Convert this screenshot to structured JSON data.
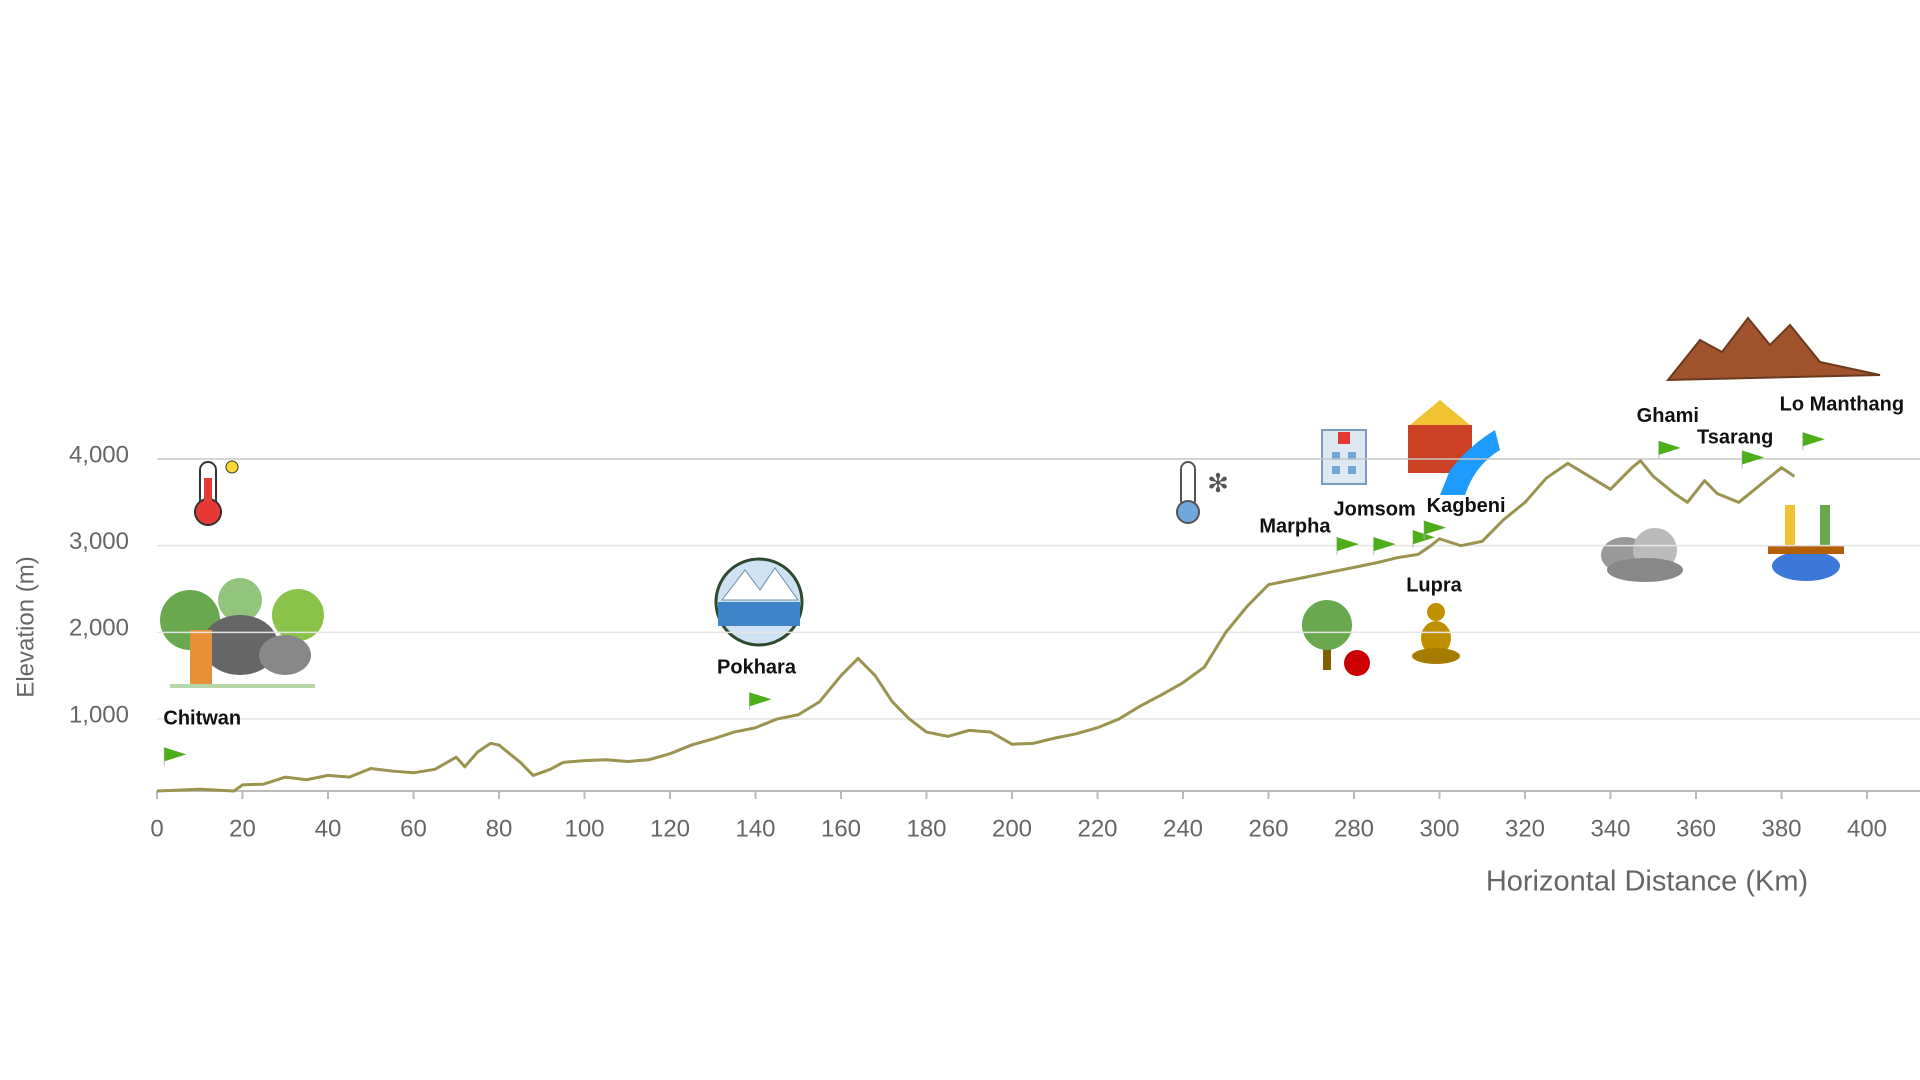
{
  "chart_data": {
    "type": "line",
    "x_label": "Horizontal Distance (Km)",
    "y_label": "Elevation (m)",
    "color": "#9a9450",
    "x": [
      0,
      10,
      18,
      20,
      25,
      30,
      35,
      40,
      45,
      50,
      55,
      60,
      65,
      70,
      72,
      75,
      78,
      80,
      85,
      88,
      92,
      95,
      100,
      105,
      110,
      115,
      120,
      125,
      130,
      135,
      140,
      145,
      150,
      155,
      160,
      164,
      168,
      172,
      176,
      180,
      185,
      190,
      195,
      200,
      205,
      210,
      215,
      220,
      225,
      230,
      235,
      240,
      245,
      250,
      255,
      260,
      265,
      270,
      275,
      280,
      285,
      290,
      295,
      298,
      300,
      305,
      310,
      315,
      320,
      325,
      330,
      335,
      340,
      345,
      347,
      350,
      355,
      358,
      362,
      365,
      370,
      375,
      380,
      383
    ],
    "values": [
      170,
      190,
      170,
      240,
      250,
      330,
      300,
      350,
      330,
      430,
      400,
      380,
      420,
      560,
      450,
      620,
      720,
      700,
      500,
      350,
      420,
      500,
      520,
      530,
      510,
      530,
      600,
      700,
      770,
      850,
      900,
      1000,
      1050,
      1200,
      1500,
      1700,
      1500,
      1200,
      1000,
      850,
      800,
      870,
      850,
      710,
      720,
      780,
      830,
      900,
      1000,
      1150,
      1280,
      1420,
      1600,
      2000,
      2300,
      2550,
      2600,
      2650,
      2700,
      2750,
      2800,
      2860,
      2900,
      3000,
      3080,
      3000,
      3050,
      3300,
      3500,
      3780,
      3950,
      3800,
      3650,
      3900,
      3980,
      3800,
      3600,
      3500,
      3750,
      3600,
      3500,
      3700,
      3900,
      3800
    ],
    "xlim": [
      0,
      412
    ],
    "ylim": [
      170,
      4000
    ],
    "xticks": [
      0,
      20,
      40,
      60,
      80,
      100,
      120,
      140,
      160,
      180,
      200,
      220,
      240,
      260,
      280,
      300,
      320,
      340,
      360,
      380,
      400
    ],
    "yticks": [
      {
        "value": 1000,
        "label": "1,000"
      },
      {
        "value": 2000,
        "label": "2,000"
      },
      {
        "value": 3000,
        "label": "3,000"
      },
      {
        "value": 4000,
        "label": "4,000"
      }
    ],
    "grid": true,
    "annotations": [
      {
        "text": "Chitwan",
        "x": 1.7,
        "y": 535
      },
      {
        "text": "Pokhara",
        "x": 138.6,
        "y": 1170
      },
      {
        "text": "Marpha",
        "x": 276,
        "y": 2960
      },
      {
        "text": "Jomsom",
        "x": 284.6,
        "y": 2960
      },
      {
        "text": "Lupra",
        "x": 293.8,
        "y": 3040
      },
      {
        "text": "Kagbeni",
        "x": 296.4,
        "y": 3150
      },
      {
        "text": "Ghami",
        "x": 351.3,
        "y": 4070
      },
      {
        "text": "Tsarang",
        "x": 370.8,
        "y": 3960
      },
      {
        "text": "Lo Manthang",
        "x": 385,
        "y": 4170
      }
    ]
  }
}
